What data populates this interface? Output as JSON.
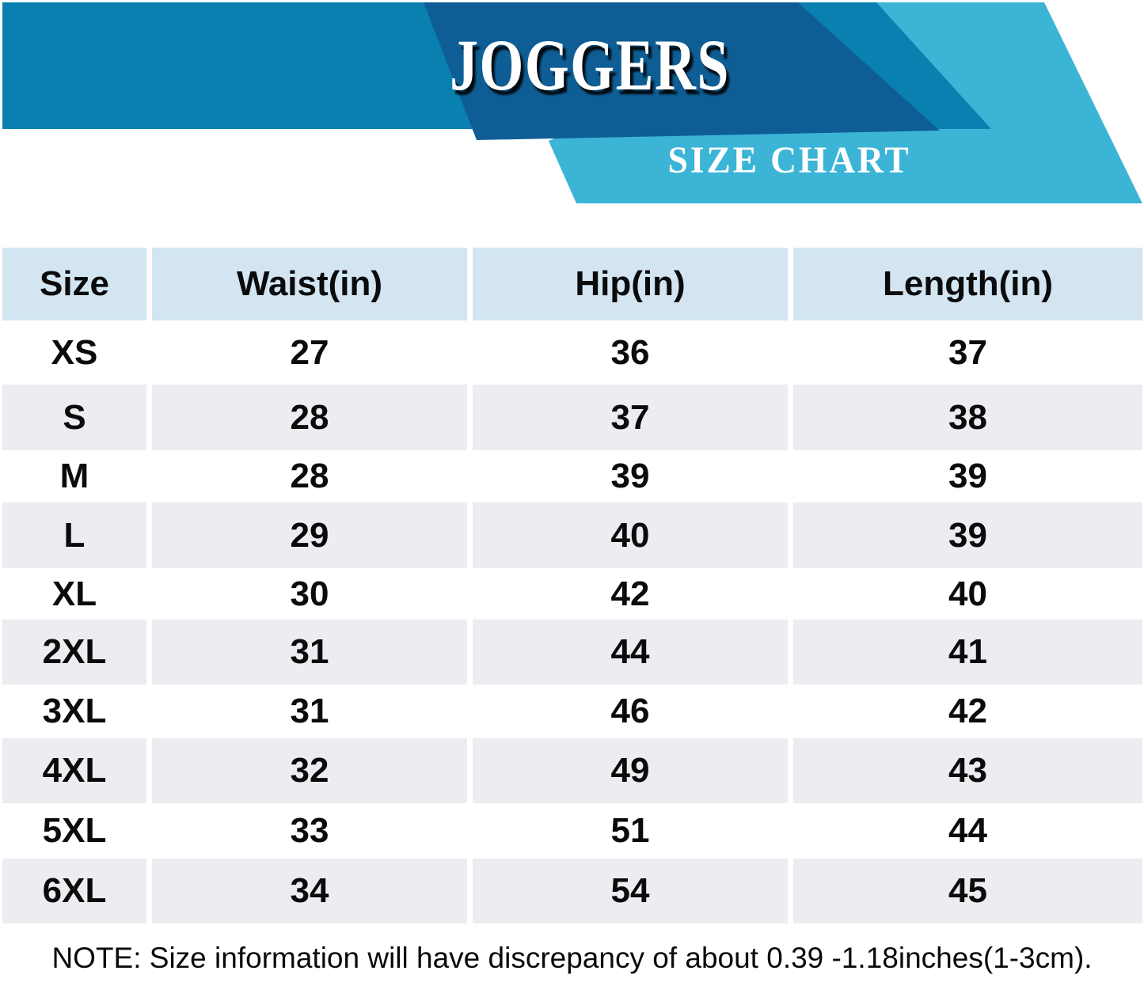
{
  "colors": {
    "banner_light_blue": "#3bb4d6",
    "banner_medium_blue": "#0a80b1",
    "banner_dark_blue": "#0e5e95",
    "table_header_blue": "#d2e5f1",
    "table_alt_row_gray": "#ececf1",
    "text_black": "#0b0b0b",
    "title_white": "#ffffff"
  },
  "chart_data": {
    "type": "table",
    "title": "JOGGERS",
    "subtitle": "SIZE CHART",
    "columns": [
      "Size",
      "Waist(in)",
      "Hip(in)",
      "Length(in)"
    ],
    "rows": [
      [
        "XS",
        27,
        36,
        37
      ],
      [
        "S",
        28,
        37,
        38
      ],
      [
        "M",
        28,
        39,
        39
      ],
      [
        "L",
        29,
        40,
        39
      ],
      [
        "XL",
        30,
        42,
        40
      ],
      [
        "2XL",
        31,
        44,
        41
      ],
      [
        "3XL",
        31,
        46,
        42
      ],
      [
        "4XL",
        32,
        49,
        43
      ],
      [
        "5XL",
        33,
        51,
        44
      ],
      [
        "6XL",
        34,
        54,
        45
      ]
    ],
    "note": "NOTE: Size information will have discrepancy of about 0.39 -1.18inches(1-3cm).",
    "layout": {
      "legend": "none",
      "grid": "off",
      "unit": "inches"
    }
  }
}
